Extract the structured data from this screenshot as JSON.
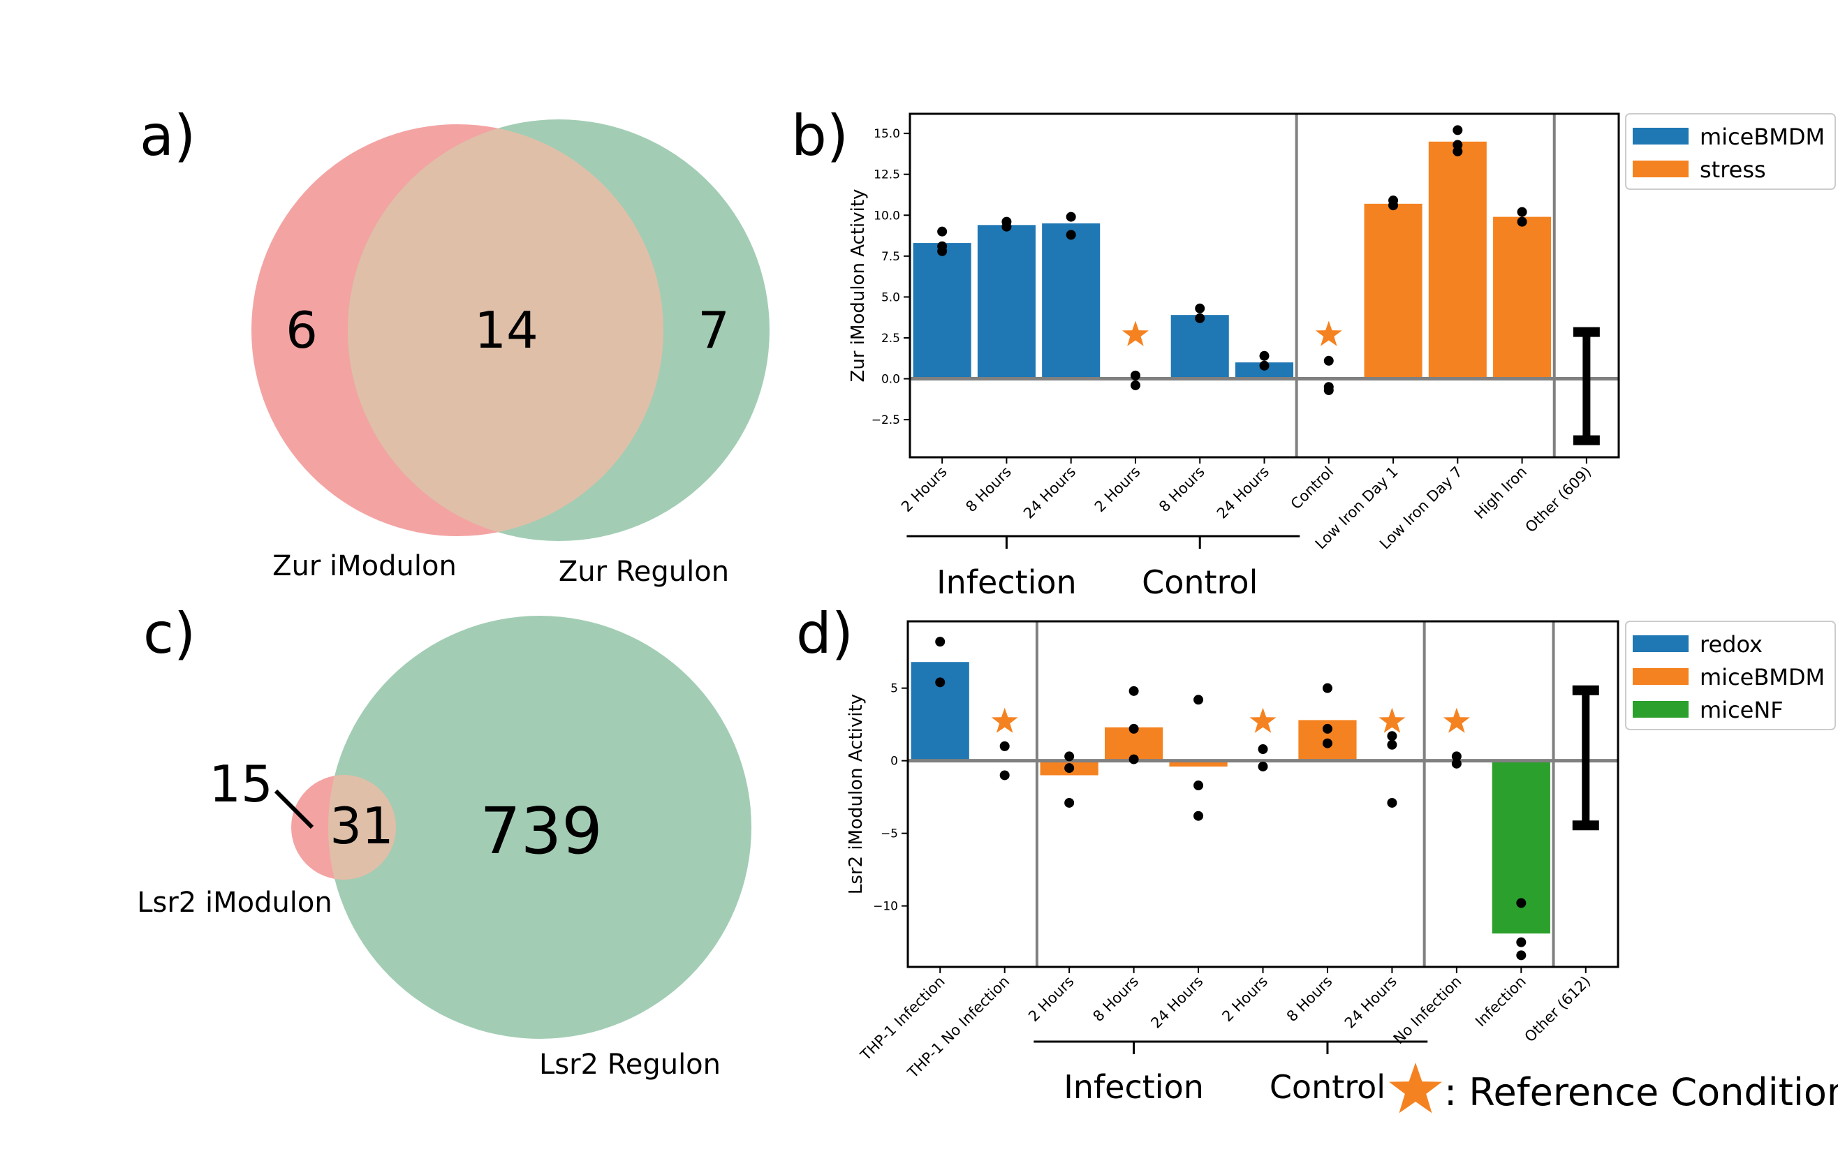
{
  "colors": {
    "imodulon_circle": "#f4a3a3",
    "regulon_circle": "#a2cdb4",
    "overlap": "#e0bfa8",
    "blue": "#1f77b4",
    "orange": "#f58220",
    "green": "#2ca02c",
    "axis_gray": "#808080",
    "dot": "#000000"
  },
  "panel_a": {
    "letter": "a)",
    "only_imodulon": "6",
    "overlap": "14",
    "only_regulon": "7",
    "imodulon_label": "Zur iModulon",
    "regulon_label": "Zur Regulon"
  },
  "panel_c": {
    "letter": "c)",
    "only_imodulon": "15",
    "overlap": "31",
    "only_regulon": "739",
    "imodulon_label": "Lsr2 iModulon",
    "regulon_label": "Lsr2 Regulon"
  },
  "reference": {
    "icon": "star-icon",
    "label": ": Reference Condition"
  },
  "chart_data": [
    {
      "panel": "b)",
      "type": "bar",
      "ylabel": "Zur iModulon Activity",
      "ylim": [
        -4.8,
        16.2
      ],
      "yticks": [
        -2.5,
        0.0,
        2.5,
        5.0,
        7.5,
        10.0,
        12.5,
        15.0
      ],
      "ytick_labels": [
        "−2.5",
        "0.0",
        "2.5",
        "5.0",
        "7.5",
        "10.0",
        "12.5",
        "15.0"
      ],
      "legend": [
        {
          "name": "miceBMDM",
          "color": "#1f77b4"
        },
        {
          "name": "stress",
          "color": "#f58220"
        }
      ],
      "legend_position": "upper right, outside",
      "categories": [
        "2 Hours",
        "8 Hours",
        "24 Hours",
        "2 Hours",
        "8 Hours",
        "24 Hours",
        "Control",
        "Low Iron Day 1",
        "Low Iron Day 7",
        "High Iron",
        "Other (609)"
      ],
      "bars": [
        {
          "value": 8.3,
          "series": "miceBMDM",
          "points": [
            9.0,
            8.1,
            7.8
          ]
        },
        {
          "value": 9.4,
          "series": "miceBMDM",
          "points": [
            9.6,
            9.3
          ]
        },
        {
          "value": 9.5,
          "series": "miceBMDM",
          "points": [
            9.9,
            8.8
          ]
        },
        {
          "value": null,
          "reference": true,
          "points": [
            0.2,
            -0.4
          ]
        },
        {
          "value": 3.9,
          "series": "miceBMDM",
          "points": [
            4.3,
            3.7
          ]
        },
        {
          "value": 1.0,
          "series": "miceBMDM",
          "points": [
            1.4,
            0.8
          ]
        },
        {
          "value": null,
          "reference": true,
          "points": [
            1.1,
            -0.5,
            -0.7
          ]
        },
        {
          "value": 10.7,
          "series": "stress",
          "points": [
            10.9,
            10.6
          ]
        },
        {
          "value": 14.5,
          "series": "stress",
          "points": [
            15.2,
            14.3,
            13.9
          ]
        },
        {
          "value": 9.9,
          "series": "stress",
          "points": [
            10.2,
            9.6
          ]
        },
        {
          "value": null,
          "error_bar": [
            -3.8,
            2.9
          ]
        }
      ],
      "separators_after_index": [
        5,
        9
      ],
      "groups": [
        {
          "label": "Infection",
          "from": 0,
          "to": 2
        },
        {
          "label": "Control",
          "from": 3,
          "to": 5
        }
      ]
    },
    {
      "panel": "d)",
      "type": "bar",
      "ylabel": "Lsr2 iModulon Activity",
      "ylim": [
        -14.2,
        9.6
      ],
      "yticks": [
        -10,
        -5,
        0,
        5
      ],
      "ytick_labels": [
        "−10",
        "−5",
        "0",
        "5"
      ],
      "legend": [
        {
          "name": "redox",
          "color": "#1f77b4"
        },
        {
          "name": "miceBMDM",
          "color": "#f58220"
        },
        {
          "name": "miceNF",
          "color": "#2ca02c"
        }
      ],
      "legend_position": "upper right, outside",
      "categories": [
        "THP-1 Infection",
        "THP-1 No Infection",
        "2 Hours",
        "8 Hours",
        "24 Hours",
        "2 Hours",
        "8 Hours",
        "24 Hours",
        "No Infection",
        "Infection",
        "Other (612)"
      ],
      "bars": [
        {
          "value": 6.8,
          "series": "redox",
          "points": [
            8.2,
            5.4
          ]
        },
        {
          "value": null,
          "reference": true,
          "points": [
            1.0,
            -1.0
          ]
        },
        {
          "value": -1.0,
          "series": "miceBMDM",
          "points": [
            0.3,
            -0.5,
            -2.9
          ]
        },
        {
          "value": 2.3,
          "series": "miceBMDM",
          "points": [
            4.8,
            2.2,
            0.1
          ]
        },
        {
          "value": -0.4,
          "series": "miceBMDM",
          "points": [
            4.2,
            -1.7,
            -3.8
          ]
        },
        {
          "value": null,
          "reference": true,
          "points": [
            0.8,
            -0.4
          ]
        },
        {
          "value": 2.8,
          "series": "miceBMDM",
          "points": [
            5.0,
            2.2,
            1.2
          ]
        },
        {
          "value": null,
          "reference": true,
          "points": [
            1.7,
            1.1,
            -2.9
          ]
        },
        {
          "value": null,
          "reference": true,
          "points": [
            0.3,
            -0.2
          ]
        },
        {
          "value": -11.9,
          "series": "miceNF",
          "points": [
            -9.8,
            -12.5,
            -13.4
          ]
        },
        {
          "value": null,
          "error_bar": [
            -4.5,
            4.9
          ]
        }
      ],
      "separators_after_index": [
        1,
        7,
        9
      ],
      "groups": [
        {
          "label": "Infection",
          "from": 2,
          "to": 4
        },
        {
          "label": "Control",
          "from": 5,
          "to": 7
        }
      ]
    }
  ]
}
